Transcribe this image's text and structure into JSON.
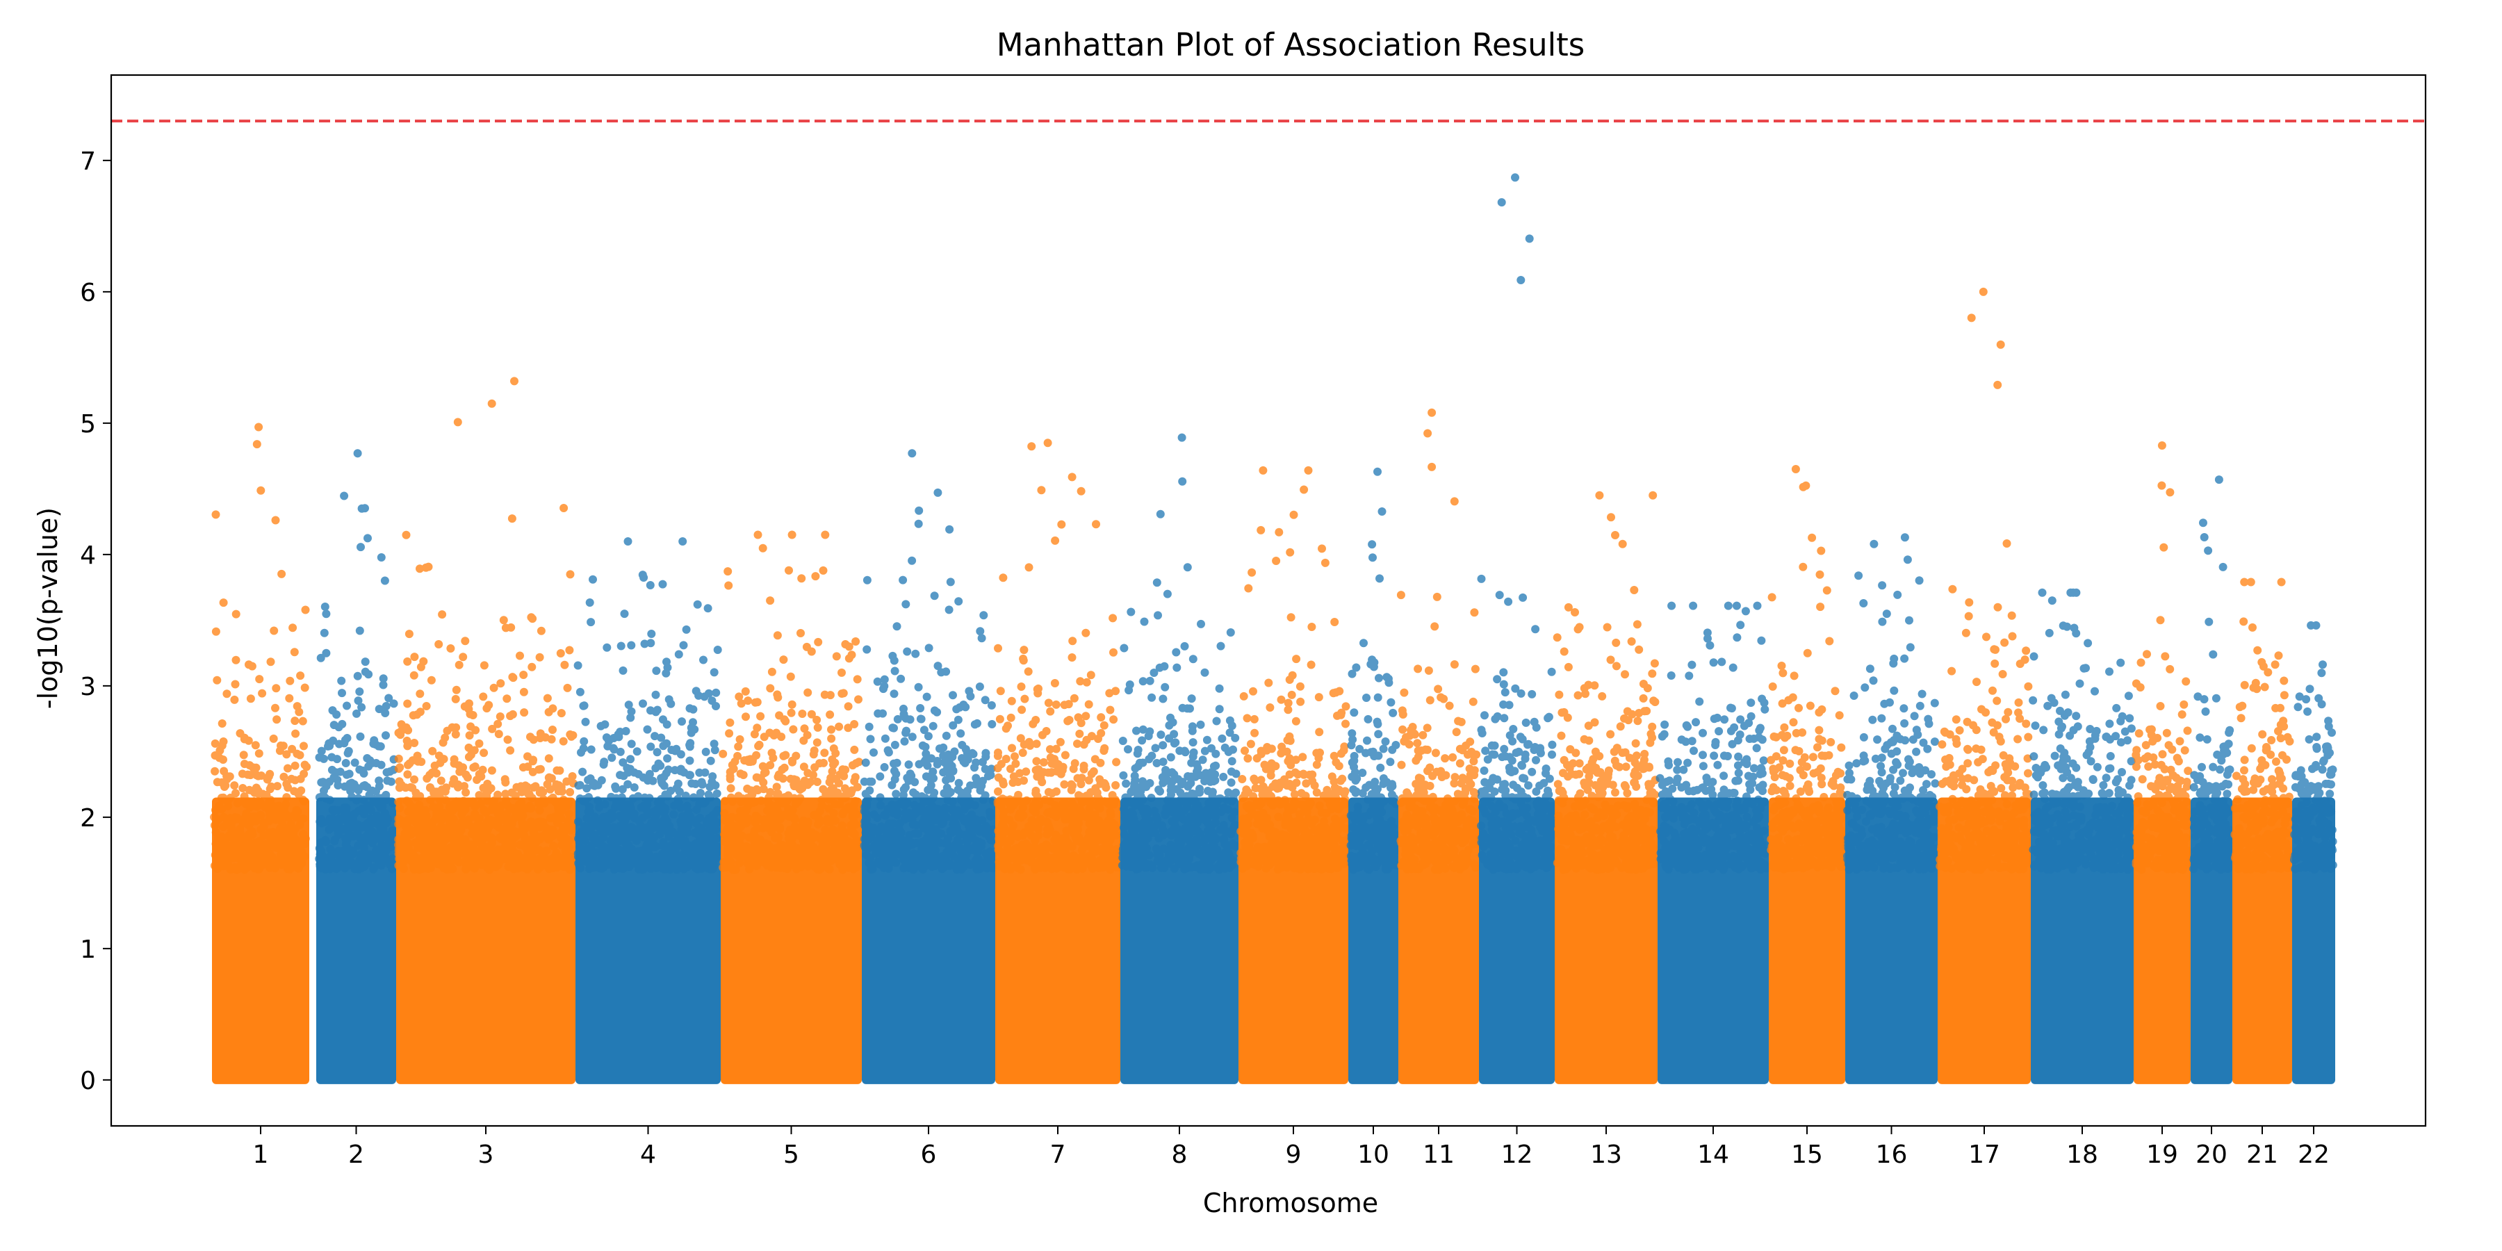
{
  "chart_data": {
    "type": "scatter",
    "title": "Manhattan Plot of Association Results",
    "xlabel": "Chromosome",
    "ylabel": "-log10(p-value)",
    "ylim": [
      -0.35,
      7.65
    ],
    "yticks": [
      0,
      1,
      2,
      3,
      4,
      5,
      6,
      7
    ],
    "grid": false,
    "legend": "none",
    "significance_threshold": 7.3,
    "threshold_color": "#e8383d",
    "colors": [
      "#ff7f0e",
      "#1f77b4"
    ],
    "chromosomes": [
      {
        "label": "1",
        "color_index": 0,
        "max_y": 4.97
      },
      {
        "label": "2",
        "color_index": 1,
        "max_y": 4.77
      },
      {
        "label": "3",
        "color_index": 0,
        "max_y": 5.32
      },
      {
        "label": "4",
        "color_index": 1,
        "max_y": 4.1
      },
      {
        "label": "5",
        "color_index": 0,
        "max_y": 4.15
      },
      {
        "label": "6",
        "color_index": 1,
        "max_y": 4.77
      },
      {
        "label": "7",
        "color_index": 0,
        "max_y": 4.85
      },
      {
        "label": "8",
        "color_index": 1,
        "max_y": 4.89
      },
      {
        "label": "9",
        "color_index": 0,
        "max_y": 4.64
      },
      {
        "label": "10",
        "color_index": 1,
        "max_y": 4.63
      },
      {
        "label": "11",
        "color_index": 0,
        "max_y": 5.08
      },
      {
        "label": "12",
        "color_index": 1,
        "max_y": 6.87
      },
      {
        "label": "13",
        "color_index": 0,
        "max_y": 4.45
      },
      {
        "label": "14",
        "color_index": 1,
        "max_y": 3.61
      },
      {
        "label": "15",
        "color_index": 0,
        "max_y": 4.65
      },
      {
        "label": "16",
        "color_index": 1,
        "max_y": 4.13
      },
      {
        "label": "17",
        "color_index": 0,
        "max_y": 6.0
      },
      {
        "label": "18",
        "color_index": 1,
        "max_y": 3.71
      },
      {
        "label": "19",
        "color_index": 0,
        "max_y": 4.83
      },
      {
        "label": "20",
        "color_index": 1,
        "max_y": 4.57
      },
      {
        "label": "21",
        "color_index": 0,
        "max_y": 3.79
      },
      {
        "label": "22",
        "color_index": 1,
        "max_y": 3.46
      }
    ]
  }
}
